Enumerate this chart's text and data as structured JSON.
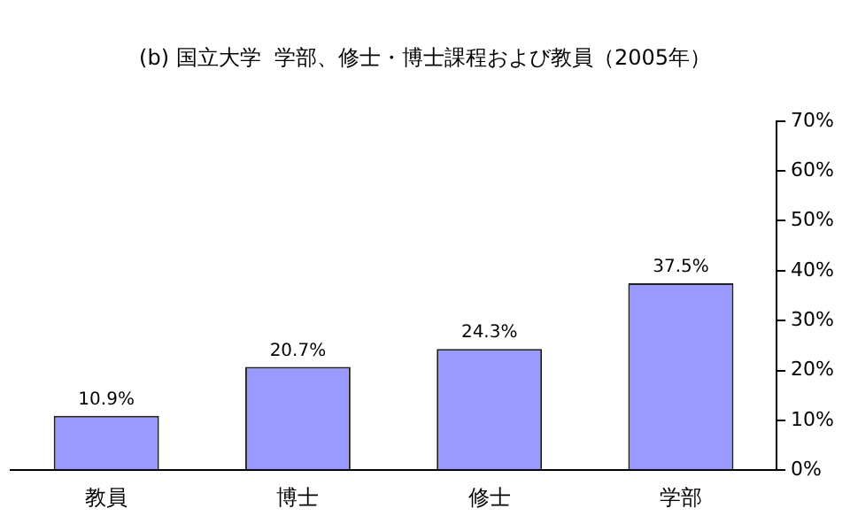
{
  "chart_data": {
    "type": "bar",
    "title": "(b) 国立大学  学部、修士・博士課程および教員（2005年）",
    "categories": [
      "教員",
      "博士",
      "修士",
      "学部"
    ],
    "values": [
      10.9,
      20.7,
      24.3,
      37.5
    ],
    "value_labels": [
      "10.9%",
      "20.7%",
      "24.3%",
      "37.5%"
    ],
    "color": "#9999ff",
    "ylim": [
      0,
      70
    ],
    "yticks": [
      {
        "value": 0,
        "label": "0%"
      },
      {
        "value": 10,
        "label": "10%"
      },
      {
        "value": 20,
        "label": "20%"
      },
      {
        "value": 30,
        "label": "30%"
      },
      {
        "value": 40,
        "label": "40%"
      },
      {
        "value": 50,
        "label": "50%"
      },
      {
        "value": 60,
        "label": "60%"
      },
      {
        "value": 70,
        "label": "70%"
      }
    ],
    "grid": false,
    "legend": false
  }
}
